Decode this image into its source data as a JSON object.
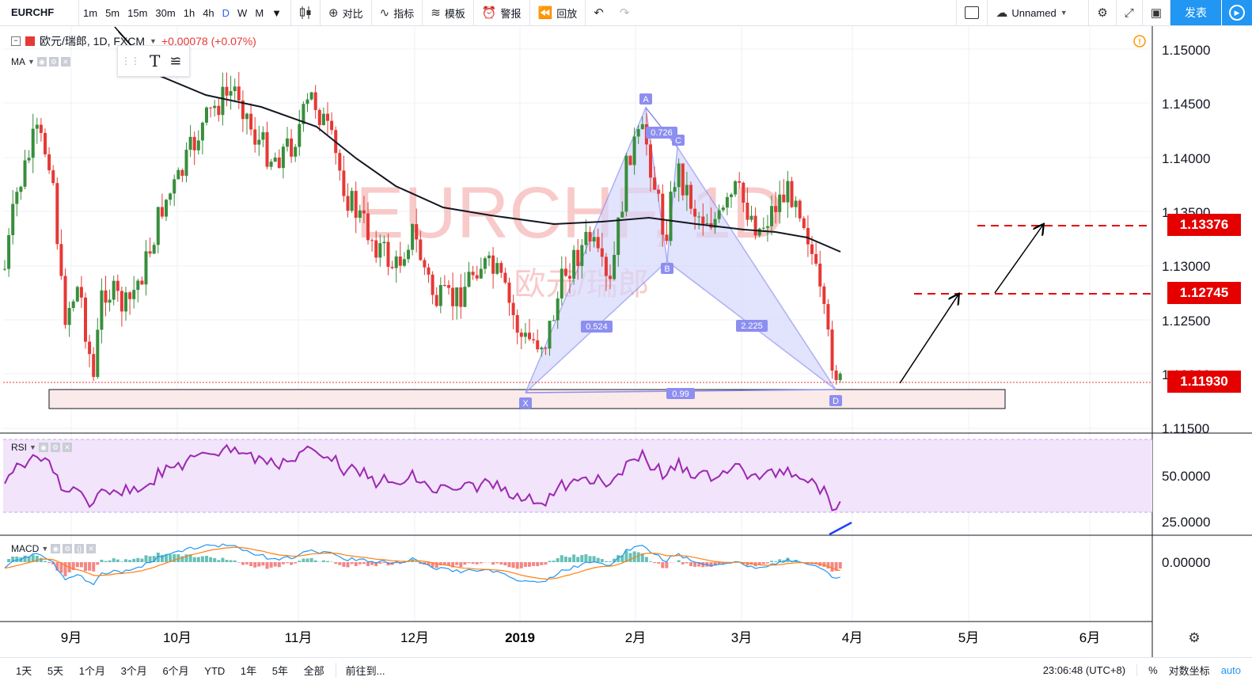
{
  "toolbar": {
    "symbol": "EURCHF",
    "intervals": [
      "1m",
      "5m",
      "15m",
      "30m",
      "1h",
      "4h",
      "D",
      "W",
      "M"
    ],
    "active_interval": "D",
    "compare": "对比",
    "indicators": "指标",
    "templates": "模板",
    "alert": "警报",
    "replay": "回放",
    "layout_name": "Unnamed",
    "publish": "发表"
  },
  "legend": {
    "title": "欧元/瑞郎, 1D, FXCM",
    "change": "+0.00078 (+0.07%)",
    "ma_label": "MA"
  },
  "watermark": {
    "line1": "EURCHF, 1D",
    "line2": "欧元/瑞郎"
  },
  "price_axis": {
    "ticks": [
      "1.15000",
      "1.14500",
      "1.14000",
      "1.13500",
      "1.13000",
      "1.12500",
      "1.12000",
      "1.11500"
    ],
    "labels": {
      "target2": "1.13376",
      "target1": "1.12745",
      "current": "1.11930"
    }
  },
  "pattern": {
    "points": [
      "X",
      "A",
      "B",
      "C",
      "D"
    ],
    "ratios": {
      "xab": "0.524",
      "abc": "0.726",
      "bcd": "2.225",
      "xad": "0.99"
    }
  },
  "rsi": {
    "label": "RSI",
    "ticks": [
      "50.0000",
      "25.0000"
    ]
  },
  "macd": {
    "label": "MACD",
    "ticks": [
      "0.00000"
    ]
  },
  "time_axis": {
    "labels": [
      "9月",
      "10月",
      "11月",
      "12月",
      "2019",
      "2月",
      "3月",
      "4月",
      "5月",
      "6月"
    ]
  },
  "bottom": {
    "ranges": [
      "1天",
      "5天",
      "1个月",
      "3个月",
      "6个月",
      "YTD",
      "1年",
      "5年",
      "全部"
    ],
    "goto": "前往到...",
    "clock": "23:06:48 (UTC+8)",
    "percent": "%",
    "log": "对数坐标",
    "auto": "auto"
  },
  "colors": {
    "up": "#388e3c",
    "down": "#e53935",
    "accent": "#2196f3",
    "pattern": "#8c8ef0",
    "rsi": "#9c27b0"
  }
}
